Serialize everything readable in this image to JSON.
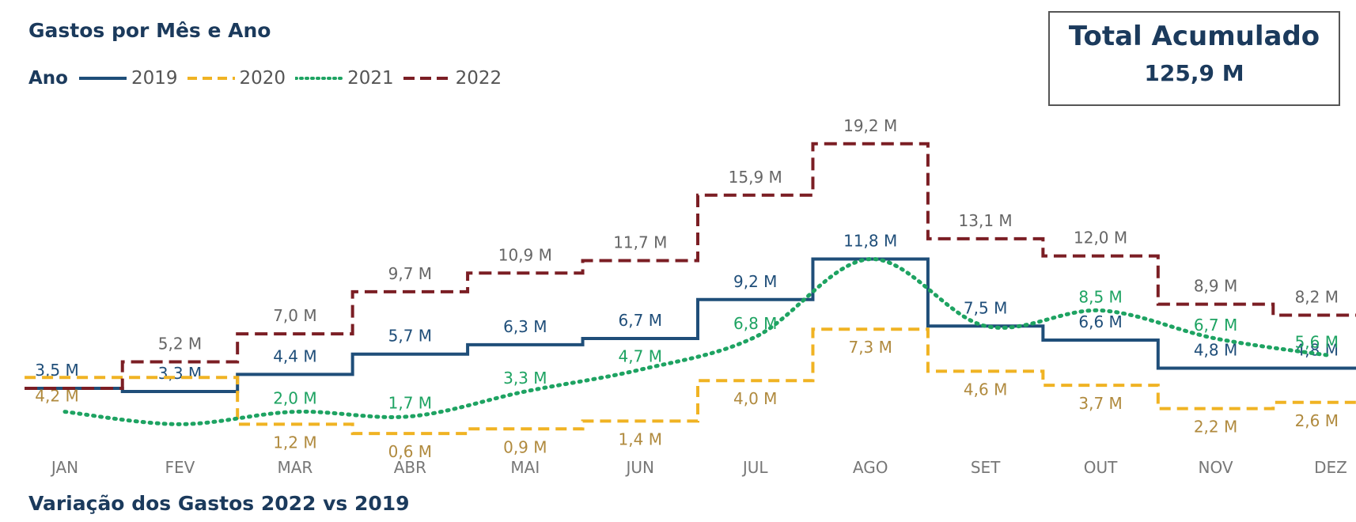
{
  "title": "Gastos por Mês e Ano",
  "legend_title": "Ano",
  "total": {
    "title": "Total Acumulado",
    "value": "125,9 M"
  },
  "bottom_title": "Variação dos Gastos 2022 vs 2019",
  "chart_data": {
    "type": "line",
    "categories": [
      "JAN",
      "FEV",
      "MAR",
      "ABR",
      "MAI",
      "JUN",
      "JUL",
      "AGO",
      "SET",
      "OUT",
      "NOV",
      "DEZ"
    ],
    "ylim": [
      0,
      20
    ],
    "grid": false,
    "legend_position": "top-left",
    "series": [
      {
        "name": "2019",
        "color": "#1f4e79",
        "style": "solid",
        "step": true,
        "values": [
          3.5,
          3.3,
          4.4,
          5.7,
          6.3,
          6.7,
          9.2,
          11.8,
          7.5,
          6.6,
          4.8,
          4.8
        ],
        "labels": [
          "3,5 M",
          "3,3 M",
          "4,4 M",
          "5,7 M",
          "6,3 M",
          "6,7 M",
          "9,2 M",
          "11,8 M",
          "7,5 M",
          "6,6 M",
          "4,8 M",
          "4,8 M"
        ]
      },
      {
        "name": "2020",
        "color": "#f0b323",
        "style": "dashed",
        "step": true,
        "values": [
          4.2,
          4.2,
          1.2,
          0.6,
          0.9,
          1.4,
          4.0,
          7.3,
          4.6,
          3.7,
          2.2,
          2.6
        ],
        "labels": [
          "4,2 M",
          "",
          "1,2 M",
          "0,6 M",
          "0,9 M",
          "1,4 M",
          "4,0 M",
          "7,3 M",
          "4,6 M",
          "3,7 M",
          "2,2 M",
          "2,6 M"
        ]
      },
      {
        "name": "2021",
        "color": "#1ea362",
        "style": "dotted",
        "step": false,
        "values": [
          2.0,
          1.2,
          2.0,
          1.7,
          3.3,
          4.7,
          6.8,
          11.8,
          7.5,
          8.5,
          6.7,
          5.6
        ],
        "labels": [
          "",
          "",
          "2,0 M",
          "1,7 M",
          "3,3 M",
          "4,7 M",
          "6,8 M",
          "",
          "",
          "8,5 M",
          "6,7 M",
          "5,6 M"
        ]
      },
      {
        "name": "2022",
        "color": "#7b1e24",
        "style": "dashed-long",
        "step": true,
        "values": [
          3.5,
          5.2,
          7.0,
          9.7,
          10.9,
          11.7,
          15.9,
          19.2,
          13.1,
          12.0,
          8.9,
          8.2
        ],
        "labels": [
          "",
          "5,2 M",
          "7,0 M",
          "9,7 M",
          "10,9 M",
          "11,7 M",
          "15,9 M",
          "19,2 M",
          "13,1 M",
          "12,0 M",
          "8,9 M",
          "8,2 M"
        ]
      }
    ]
  }
}
